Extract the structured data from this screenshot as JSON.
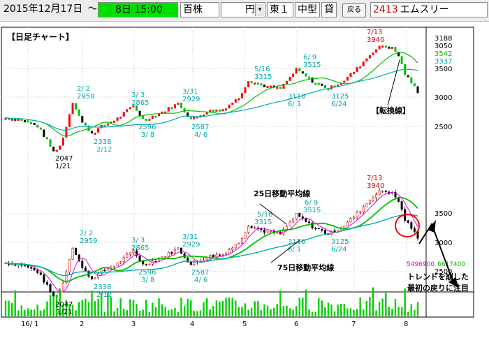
{
  "toolbar": {
    "date": "2015年12月17日",
    "tilde": "～",
    "dropdown_arrow": "▾",
    "period": "8日 15:00",
    "unit": "百株",
    "currency": "円",
    "market": "東１",
    "size": "中型",
    "lending": "貸",
    "back_button": "戻る",
    "code": "2413",
    "name": "エムスリー"
  },
  "chart": {
    "title": "【日足チャート】",
    "right_top_values": [
      "3188",
      "3050",
      "3542",
      "3337"
    ],
    "right_top_colors": [
      "#000000",
      "#000000",
      "#00bb00",
      "#00a0a0"
    ],
    "upper_ticks": [
      "3500",
      "3000",
      "2500"
    ],
    "lower_ticks": [
      "3500",
      "3000",
      "2500"
    ],
    "volume_labels": [
      "5496900",
      "6617400"
    ],
    "x_labels": [
      "16/ 1",
      "2",
      "3",
      "4",
      "5",
      "6",
      "7",
      "8"
    ],
    "upper_annotations": [
      {
        "top": "2/ 2",
        "bottom": "2959"
      },
      {
        "top": "3/ 3",
        "bottom": "2865"
      },
      {
        "top": "3/31",
        "bottom": "2929"
      },
      {
        "top": "5/16",
        "bottom": "3315"
      },
      {
        "top": "6/ 9",
        "bottom": "3515"
      },
      {
        "top": "7/13",
        "bottom": "3940"
      },
      {
        "top": "2047",
        "bottom": "1/21"
      },
      {
        "top": "2338",
        "bottom": "2/12"
      },
      {
        "top": "2596",
        "bottom": "3/ 8"
      },
      {
        "top": "2587",
        "bottom": "4/ 6"
      },
      {
        "top": "3110",
        "bottom": "6/ 1"
      },
      {
        "top": "3125",
        "bottom": "6/24"
      }
    ],
    "lower_annotations": [
      {
        "top": "2/ 2",
        "bottom": "2959"
      },
      {
        "top": "3/ 3",
        "bottom": "2865"
      },
      {
        "top": "3/31",
        "bottom": "2929"
      },
      {
        "top": "5/16",
        "bottom": "3315"
      },
      {
        "top": "6/ 9",
        "bottom": "3515"
      },
      {
        "top": "7/13",
        "bottom": "3940"
      },
      {
        "top": "2047",
        "bottom": "1/21"
      },
      {
        "top": "2338",
        "bottom": "2/12"
      },
      {
        "top": "2596",
        "bottom": "3/ 8"
      },
      {
        "top": "2587",
        "bottom": "4/ 6"
      },
      {
        "top": "3110",
        "bottom": "6/ 1"
      },
      {
        "top": "3125",
        "bottom": "6/24"
      }
    ],
    "conversion_line_label": "【転換線】",
    "ma25_label": "25日移動平均線",
    "ma75_label": "75日移動平均線",
    "note_line1": "トレンドを崩した",
    "note_line2": "最初の戻りに注目"
  },
  "colors": {
    "green": "#00e000",
    "red": "#ff0000",
    "cyan": "#00a8a8",
    "magenta": "#e000e0",
    "annotation_red": "#e00000"
  },
  "chart_data": {
    "type": "candlestick",
    "x_axis_months": [
      "16/ 1",
      "2",
      "3",
      "4",
      "5",
      "6",
      "7",
      "8"
    ],
    "labeled_highs": [
      {
        "date": "2/ 2",
        "price": 2959
      },
      {
        "date": "3/ 3",
        "price": 2865
      },
      {
        "date": "3/31",
        "price": 2929
      },
      {
        "date": "5/16",
        "price": 3315
      },
      {
        "date": "6/ 9",
        "price": 3515
      },
      {
        "date": "7/13",
        "price": 3940
      }
    ],
    "labeled_lows": [
      {
        "date": "1/21",
        "price": 2047
      },
      {
        "date": "2/12",
        "price": 2338
      },
      {
        "date": "3/ 8",
        "price": 2596
      },
      {
        "date": "4/ 6",
        "price": 2587
      },
      {
        "date": "6/ 1",
        "price": 3110
      },
      {
        "date": "6/24",
        "price": 3125
      }
    ],
    "y_ticks": [
      2500,
      3000,
      3500
    ],
    "volume_values": [
      5496900,
      6617400
    ]
  }
}
